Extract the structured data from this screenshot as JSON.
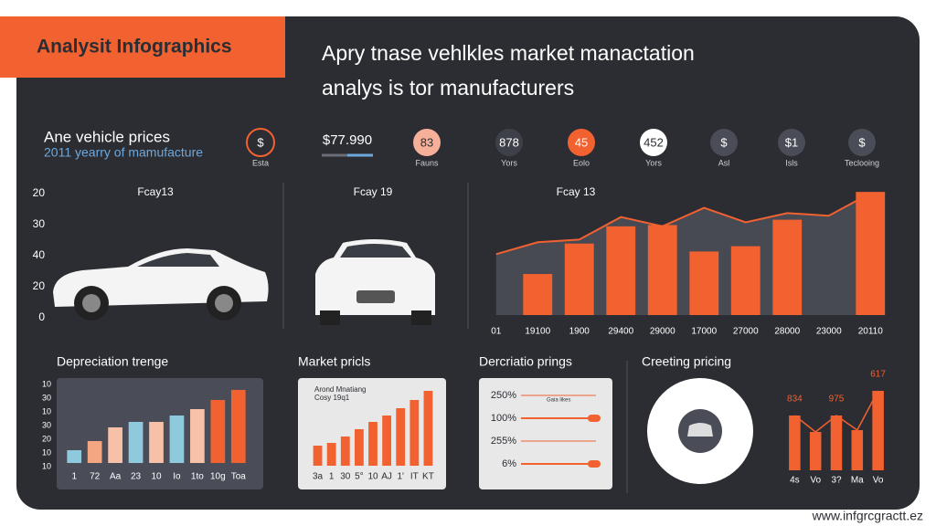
{
  "header": {
    "badge": "Analysit Infographics",
    "title_lines": [
      "Apry tnase vehlkles market manactation",
      "analys is tor manufacturers"
    ]
  },
  "prices": {
    "title": "Ane vehicle prices",
    "subtitle": "2011 yearry of mamufacture"
  },
  "stats": [
    {
      "value": "$",
      "label": "Esta",
      "color": "#2b2d33",
      "ring": "#f26130",
      "text_color": "#ffffff"
    },
    {
      "value": "$77.990",
      "color": "none",
      "text_color": "#ffffff"
    },
    {
      "value": "83",
      "label": "Fauns",
      "color": "#f6b09a",
      "text_color": "#2b2d33"
    },
    {
      "value": "878",
      "label": "Yors",
      "color": "#3d4049",
      "text_color": "#ffffff"
    },
    {
      "value": "45",
      "label": "Eolo",
      "color": "#f26130",
      "text_color": "#ffffff"
    },
    {
      "value": "452",
      "label": "Yors",
      "color": "#ffffff",
      "text_color": "#2b2d33"
    },
    {
      "value": "$",
      "label": "Asl",
      "color": "#4a4d57",
      "text_color": "#ffffff"
    },
    {
      "value": "$1",
      "label": "Isls",
      "color": "#4a4d57",
      "text_color": "#ffffff"
    },
    {
      "value": "$",
      "label": "Teclooing",
      "color": "#4a4d57",
      "text_color": "#ffffff"
    }
  ],
  "car_panels": [
    {
      "label": "Fcay13",
      "axis_labels": [
        "20",
        "30",
        "40",
        "20",
        "0"
      ]
    },
    {
      "label": "Fcay 19"
    }
  ],
  "dercriatio": {
    "title": "Dercriatio prings",
    "note": "Gaia likes",
    "labels": [
      "250%",
      "100%",
      "255%",
      "6%"
    ]
  },
  "chart_data": [
    {
      "type": "bar",
      "title": "Fcay 13",
      "categories": [
        "01",
        "19100",
        "1900",
        "29400",
        "29000",
        "17000",
        "27000",
        "28000",
        "23000",
        "20110"
      ],
      "values": [
        null,
        31,
        54,
        67,
        68,
        48,
        52,
        72,
        null,
        93
      ],
      "line_values": [
        46,
        55,
        57,
        74,
        67,
        81,
        70,
        77,
        75,
        92
      ],
      "ylim": [
        0,
        100
      ],
      "color": "#f26130",
      "line_color": "#f26130",
      "area_color": "#474a52"
    },
    {
      "type": "bar",
      "title": "Depreciation trenge",
      "categories": [
        "1",
        "72",
        "Aa",
        "23",
        "10",
        "Io",
        "1to",
        "10g",
        "Toa"
      ],
      "values": [
        14,
        24,
        39,
        45,
        45,
        52,
        59,
        69,
        80
      ],
      "colors": [
        "#8fc9dc",
        "#f4a582",
        "#f6c1a8",
        "#8fc9dc",
        "#f6c1a8",
        "#8fc9dc",
        "#f6c1a8",
        "#f26130",
        "#f26130"
      ],
      "axis_labels": [
        "10",
        "30",
        "10",
        "30",
        "20",
        "10",
        "10"
      ],
      "ylim": [
        0,
        100
      ]
    },
    {
      "type": "bar",
      "title": "Market pricls",
      "note_lines": [
        "Arond Mnatiang",
        "Cosy 19q1"
      ],
      "categories": [
        "3a",
        "1",
        "30",
        "5°",
        "10",
        "AJ",
        "1'",
        "IT",
        "KT"
      ],
      "values": [
        22,
        25,
        32,
        40,
        48,
        55,
        63,
        72,
        82
      ],
      "ylim": [
        0,
        100
      ],
      "color": "#f26130"
    },
    {
      "type": "bar",
      "title": "Creeting pricing",
      "categories": [
        "4s",
        "Vo",
        "3?",
        "Ma",
        "Vo"
      ],
      "values": [
        60,
        42,
        60,
        44,
        87
      ],
      "annotations": [
        "834",
        "975",
        "617"
      ],
      "ylim": [
        0,
        100
      ],
      "color": "#f26130"
    }
  ],
  "footer": "www.infgrcgractt.ez"
}
